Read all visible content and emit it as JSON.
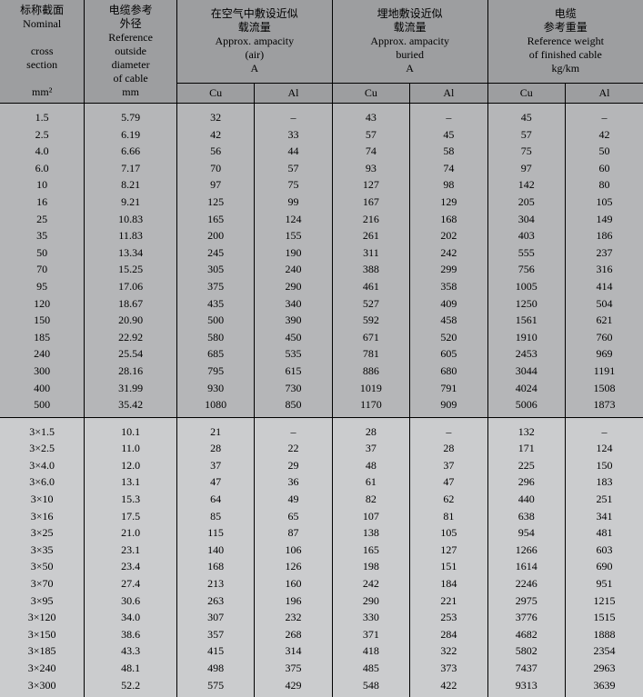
{
  "headers": {
    "col1": "标称截面<br>Nominal<br><br>cross<br>section<br><br>mm²",
    "col2": "电缆参考<br>外径<br>Reference<br>outside<br>diameter<br>of cable<br>mm",
    "col3": "在空气中敷设近似<br>载流量<br>Approx. ampacity<br>(air)<br>A",
    "col4": "埋地敷设近似<br>载流量<br>Approx. ampacity<br>buried<br>A",
    "col5": "电缆<br>参考重量<br>Reference weight<br>of finished cable<br>kg/km",
    "cu": "Cu",
    "al": "Al"
  },
  "section1": [
    [
      "1.5",
      "5.79",
      "32",
      "–",
      "43",
      "–",
      "45",
      "–"
    ],
    [
      "2.5",
      "6.19",
      "42",
      "33",
      "57",
      "45",
      "57",
      "42"
    ],
    [
      "4.0",
      "6.66",
      "56",
      "44",
      "74",
      "58",
      "75",
      "50"
    ],
    [
      "6.0",
      "7.17",
      "70",
      "57",
      "93",
      "74",
      "97",
      "60"
    ],
    [
      "10",
      "8.21",
      "97",
      "75",
      "127",
      "98",
      "142",
      "80"
    ],
    [
      "16",
      "9.21",
      "125",
      "99",
      "167",
      "129",
      "205",
      "105"
    ],
    [
      "25",
      "10.83",
      "165",
      "124",
      "216",
      "168",
      "304",
      "149"
    ],
    [
      "35",
      "11.83",
      "200",
      "155",
      "261",
      "202",
      "403",
      "186"
    ],
    [
      "50",
      "13.34",
      "245",
      "190",
      "311",
      "242",
      "555",
      "237"
    ],
    [
      "70",
      "15.25",
      "305",
      "240",
      "388",
      "299",
      "756",
      "316"
    ],
    [
      "95",
      "17.06",
      "375",
      "290",
      "461",
      "358",
      "1005",
      "414"
    ],
    [
      "120",
      "18.67",
      "435",
      "340",
      "527",
      "409",
      "1250",
      "504"
    ],
    [
      "150",
      "20.90",
      "500",
      "390",
      "592",
      "458",
      "1561",
      "621"
    ],
    [
      "185",
      "22.92",
      "580",
      "450",
      "671",
      "520",
      "1910",
      "760"
    ],
    [
      "240",
      "25.54",
      "685",
      "535",
      "781",
      "605",
      "2453",
      "969"
    ],
    [
      "300",
      "28.16",
      "795",
      "615",
      "886",
      "680",
      "3044",
      "1191"
    ],
    [
      "400",
      "31.99",
      "930",
      "730",
      "1019",
      "791",
      "4024",
      "1508"
    ],
    [
      "500",
      "35.42",
      "1080",
      "850",
      "1170",
      "909",
      "5006",
      "1873"
    ]
  ],
  "section2": [
    [
      "3×1.5",
      "10.1",
      "21",
      "–",
      "28",
      "–",
      "132",
      "–"
    ],
    [
      "3×2.5",
      "11.0",
      "28",
      "22",
      "37",
      "28",
      "171",
      "124"
    ],
    [
      "3×4.0",
      "12.0",
      "37",
      "29",
      "48",
      "37",
      "225",
      "150"
    ],
    [
      "3×6.0",
      "13.1",
      "47",
      "36",
      "61",
      "47",
      "296",
      "183"
    ],
    [
      "3×10",
      "15.3",
      "64",
      "49",
      "82",
      "62",
      "440",
      "251"
    ],
    [
      "3×16",
      "17.5",
      "85",
      "65",
      "107",
      "81",
      "638",
      "341"
    ],
    [
      "3×25",
      "21.0",
      "115",
      "87",
      "138",
      "105",
      "954",
      "481"
    ],
    [
      "3×35",
      "23.1",
      "140",
      "106",
      "165",
      "127",
      "1266",
      "603"
    ],
    [
      "3×50",
      "23.4",
      "168",
      "126",
      "198",
      "151",
      "1614",
      "690"
    ],
    [
      "3×70",
      "27.4",
      "213",
      "160",
      "242",
      "184",
      "2246",
      "951"
    ],
    [
      "3×95",
      "30.6",
      "263",
      "196",
      "290",
      "221",
      "2975",
      "1215"
    ],
    [
      "3×120",
      "34.0",
      "307",
      "232",
      "330",
      "253",
      "3776",
      "1515"
    ],
    [
      "3×150",
      "38.6",
      "357",
      "268",
      "371",
      "284",
      "4682",
      "1888"
    ],
    [
      "3×185",
      "43.3",
      "415",
      "314",
      "418",
      "322",
      "5802",
      "2354"
    ],
    [
      "3×240",
      "48.1",
      "498",
      "375",
      "485",
      "373",
      "7437",
      "2963"
    ],
    [
      "3×300",
      "52.2",
      "575",
      "429",
      "548",
      "422",
      "9313",
      "3639"
    ]
  ]
}
